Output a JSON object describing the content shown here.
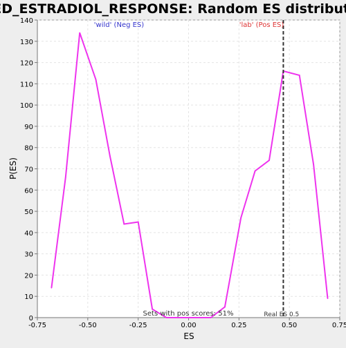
{
  "chart_data": {
    "type": "line",
    "title": "SYED_ESTRADIOL_RESPONSE: Random ES distribution",
    "xlabel": "ES",
    "ylabel": "P(ES)",
    "xlim": [
      -0.75,
      0.75
    ],
    "ylim": [
      0,
      140
    ],
    "xticks": [
      -0.75,
      -0.5,
      -0.25,
      0.0,
      0.25,
      0.5,
      0.75
    ],
    "xtick_labels": [
      "-0.75",
      "-0.50",
      "-0.25",
      "0.00",
      "0.25",
      "0.50",
      "0.75"
    ],
    "yticks": [
      0,
      10,
      20,
      30,
      40,
      50,
      60,
      70,
      80,
      90,
      100,
      110,
      120,
      130,
      140
    ],
    "ytick_labels": [
      "0",
      "10",
      "20",
      "30",
      "40",
      "50",
      "60",
      "70",
      "80",
      "90",
      "100",
      "110",
      "120",
      "130",
      "140"
    ],
    "grid": true,
    "series": [
      {
        "color": "#ee33ee",
        "x": [
          -0.68,
          -0.61,
          -0.54,
          -0.46,
          -0.39,
          -0.32,
          -0.25,
          -0.18,
          -0.11,
          0.11,
          0.18,
          0.26,
          0.33,
          0.4,
          0.47,
          0.55,
          0.62,
          0.69
        ],
        "y": [
          14,
          66,
          134,
          112,
          76,
          44,
          45,
          4,
          0,
          0,
          5,
          47,
          69,
          74,
          116,
          114,
          72,
          9
        ]
      }
    ],
    "real_es": {
      "x": 0.47,
      "label": "Real ES 0.5",
      "color": "#333333"
    },
    "annotations": {
      "neg_label": "'wild' (Neg ES)",
      "neg_color": "#3333cc",
      "pos_label": "'lab' (Pos ES)",
      "pos_color": "#dd3333",
      "pos_scores": "Sets with pos scores: 51%",
      "pos_scores_color": "#333333"
    }
  }
}
